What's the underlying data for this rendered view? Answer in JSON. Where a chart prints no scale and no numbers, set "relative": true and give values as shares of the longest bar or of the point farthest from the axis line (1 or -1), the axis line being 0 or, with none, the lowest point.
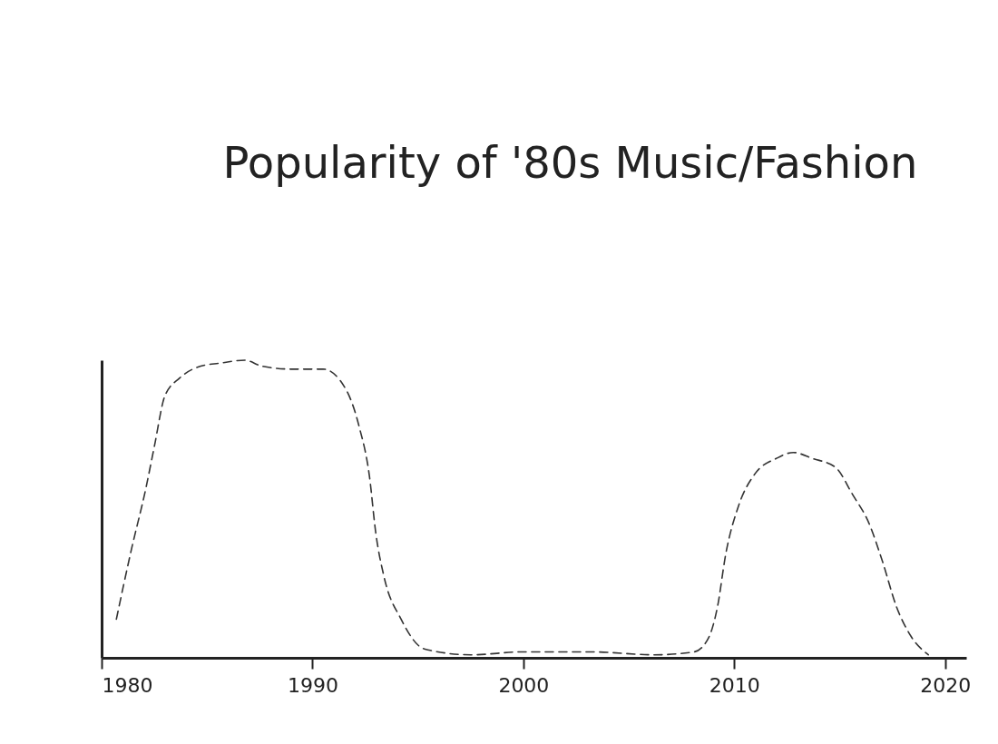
{
  "chart_data": {
    "type": "line",
    "title": "Popularity of '80s Music/Fashion",
    "relative": true,
    "x": [
      1980.7,
      1981.4,
      1982.1,
      1982.5,
      1983.0,
      1983.7,
      1984.7,
      1985.6,
      1986.8,
      1987.6,
      1989.0,
      1990.5,
      1991.6,
      1992.2,
      1992.7,
      1993.0,
      1993.4,
      1994.2,
      1995.3,
      1997.5,
      2000.0,
      2003.2,
      2006.2,
      2008.1,
      2008.8,
      2009.2,
      2009.6,
      2010.2,
      2011.0,
      2012.0,
      2012.8,
      2013.7,
      2014.8,
      2015.6,
      2016.4,
      2017.0,
      2017.7,
      2018.4,
      2019.2
    ],
    "xlim": [
      1980,
      2021
    ],
    "xticks": [
      1980,
      1990,
      2000,
      2010,
      2020
    ],
    "series": [
      {
        "color": "#333333",
        "values": [
          0.13,
          0.36,
          0.57,
          0.71,
          0.88,
          0.94,
          0.98,
          0.99,
          1,
          0.98,
          0.97,
          0.97,
          0.9,
          0.78,
          0.61,
          0.42,
          0.27,
          0.13,
          0.03,
          0.01,
          0.02,
          0.02,
          0.01,
          0.02,
          0.07,
          0.17,
          0.35,
          0.51,
          0.62,
          0.67,
          0.69,
          0.67,
          0.64,
          0.55,
          0.45,
          0.33,
          0.17,
          0.07,
          0.01
        ]
      }
    ],
    "line_style": "dashed"
  }
}
